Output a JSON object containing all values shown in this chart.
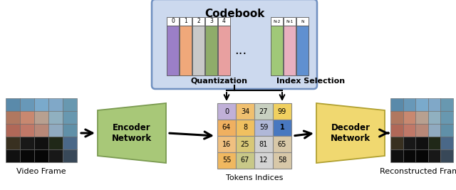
{
  "codebook_title": "Codebook",
  "codebook_labels_left": [
    "0",
    "1",
    "2",
    "3",
    "4"
  ],
  "codebook_labels_right": [
    "N-2",
    "N-1",
    "N"
  ],
  "codebook_colors_left": [
    "#9b7fc7",
    "#f0a87a",
    "#c8c8c8",
    "#8fac6a",
    "#e8a0a0"
  ],
  "codebook_colors_right": [
    "#a0c878",
    "#e8b0c0",
    "#6090d0"
  ],
  "token_matrix": [
    [
      0,
      34,
      27,
      99
    ],
    [
      64,
      8,
      59,
      1
    ],
    [
      16,
      25,
      81,
      65
    ],
    [
      55,
      67,
      12,
      58
    ]
  ],
  "token_colors": [
    [
      "#c0b0d8",
      "#f0c070",
      "#c8d0c0",
      "#f0d060"
    ],
    [
      "#f0b060",
      "#f0c060",
      "#b0b8d8",
      "#4878c0"
    ],
    [
      "#f0c080",
      "#d8c878",
      "#d0d0d0",
      "#d8c8a8"
    ],
    [
      "#f0b860",
      "#c8c888",
      "#d4d4d4",
      "#d8c8a8"
    ]
  ],
  "encoder_label": "Encoder\nNetwork",
  "decoder_label": "Decoder\nNetwork",
  "encoder_color": "#a8c878",
  "encoder_edge": "#7a9a50",
  "decoder_color": "#f0d870",
  "decoder_edge": "#b0a030",
  "quantization_label": "Quantization",
  "index_selection_label": "Index Selection",
  "video_frame_label": "Video Frame",
  "tokens_indices_label": "Tokens Indices",
  "reconstructed_frame_label": "Reconstructed Frame",
  "bg_color": "#ffffff",
  "codebook_bg": "#ccd9ee",
  "codebook_border": "#7090c0",
  "video_pixels": [
    [
      "#5a8aaa",
      "#6090a8",
      "#7aacca",
      "#7aacca",
      "#6898b0"
    ],
    [
      "#c07858",
      "#d89070",
      "#b8a8a0",
      "#a8bac8",
      "#6898b0"
    ],
    [
      "#b87060",
      "#c8806a",
      "#d09080",
      "#a8b8c0",
      "#6090a8"
    ],
    [
      "#484030",
      "#202020",
      "#181818",
      "#383828",
      "#5a7898"
    ],
    [
      "#181818",
      "#101010",
      "#0a0a0a",
      "#303030",
      "#486880"
    ]
  ],
  "recon_pixels": [
    [
      "#5a8aaa",
      "#6090a8",
      "#7aacca",
      "#7aacca",
      "#6898b0"
    ],
    [
      "#c07858",
      "#d89070",
      "#b8a8a0",
      "#a8bac8",
      "#6898b0"
    ],
    [
      "#b87060",
      "#c8806a",
      "#d09080",
      "#a8b8c0",
      "#6090a8"
    ],
    [
      "#484030",
      "#202020",
      "#181818",
      "#383828",
      "#5a7898"
    ],
    [
      "#181818",
      "#101010",
      "#0a0a0a",
      "#303030",
      "#486880"
    ]
  ]
}
